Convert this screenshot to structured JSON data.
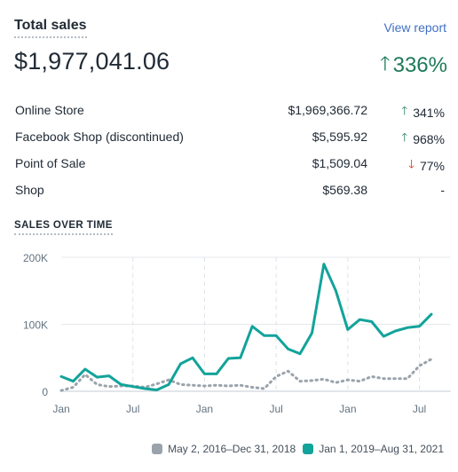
{
  "header": {
    "title": "Total sales",
    "view_report": "View report",
    "total_value": "$1,977,041.06",
    "total_change": "336%",
    "total_change_direction": "up"
  },
  "channels": [
    {
      "name": "Online Store",
      "value": "$1,969,366.72",
      "change": "341%",
      "direction": "up"
    },
    {
      "name": "Facebook Shop (discontinued)",
      "value": "$5,595.92",
      "change": "968%",
      "direction": "up"
    },
    {
      "name": "Point of Sale",
      "value": "$1,509.04",
      "change": "77%",
      "direction": "down"
    },
    {
      "name": "Shop",
      "value": "$569.38",
      "change": "-",
      "direction": "none"
    }
  ],
  "section_title": "SALES OVER TIME",
  "colors": {
    "current": "#12a39a",
    "previous": "#9aa3ab",
    "up": "#1c7a58",
    "down": "#d82c0d",
    "link": "#3f6fc4"
  },
  "chart_data": {
    "type": "line",
    "y_ticks": [
      "0",
      "100K",
      "200K"
    ],
    "y_tick_values": [
      0,
      100000,
      200000
    ],
    "ylim": [
      0,
      200000
    ],
    "x_ticks": [
      "Jan",
      "Jul",
      "Jan",
      "Jul",
      "Jan",
      "Jul"
    ],
    "x_tick_indices": [
      0,
      6,
      12,
      18,
      24,
      30
    ],
    "grid": true,
    "legend_position": "bottom-right",
    "series": [
      {
        "name": "Jan 1, 2019–Aug 31, 2021",
        "style": "solid",
        "values": [
          22000,
          15000,
          33000,
          21000,
          23000,
          10000,
          7000,
          4000,
          2000,
          10000,
          41000,
          50000,
          26000,
          26000,
          49000,
          50000,
          97000,
          83000,
          83000,
          63000,
          56000,
          87000,
          190000,
          150000,
          92000,
          107000,
          104000,
          82000,
          90000,
          95000,
          97000,
          115000
        ]
      },
      {
        "name": "May 2, 2016–Dec 31, 2018",
        "style": "dotted",
        "values": [
          1000,
          6000,
          25000,
          10000,
          7000,
          8000,
          8000,
          6000,
          11000,
          17000,
          10000,
          9000,
          8000,
          9000,
          8000,
          9000,
          6000,
          4000,
          22000,
          30000,
          15000,
          16000,
          18000,
          13000,
          17000,
          15000,
          22000,
          19000,
          19000,
          19000,
          38000,
          48000
        ]
      }
    ]
  }
}
